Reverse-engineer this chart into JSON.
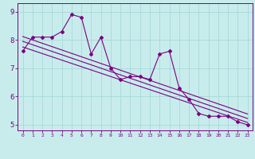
{
  "x": [
    0,
    1,
    2,
    3,
    4,
    5,
    6,
    7,
    8,
    9,
    10,
    11,
    12,
    13,
    14,
    15,
    16,
    17,
    18,
    19,
    20,
    21,
    22,
    23
  ],
  "y_main": [
    7.6,
    8.1,
    8.1,
    8.1,
    8.3,
    8.9,
    8.8,
    7.5,
    8.1,
    7.0,
    6.6,
    6.7,
    6.7,
    6.6,
    7.5,
    7.6,
    6.3,
    5.9,
    5.4,
    5.3,
    5.3,
    5.3,
    5.1,
    5.0
  ],
  "xlim": [
    -0.5,
    23.5
  ],
  "ylim": [
    4.8,
    9.3
  ],
  "yticks": [
    5,
    6,
    7,
    8,
    9
  ],
  "xticks": [
    0,
    1,
    2,
    3,
    4,
    5,
    6,
    7,
    8,
    9,
    10,
    11,
    12,
    13,
    14,
    15,
    16,
    17,
    18,
    19,
    20,
    21,
    22,
    23
  ],
  "line_color": "#7b0080",
  "bg_color": "#c8ecec",
  "grid_color": "#a8d8d8",
  "axis_color": "#7b0080",
  "xlabel_bg": "#7b0080",
  "xlabel_fg": "#ffffff",
  "reg1_start_y": 7.75,
  "reg1_end_y": 5.08,
  "reg2_start_y": 7.95,
  "reg2_end_y": 5.22,
  "reg3_start_y": 8.12,
  "reg3_end_y": 5.38
}
